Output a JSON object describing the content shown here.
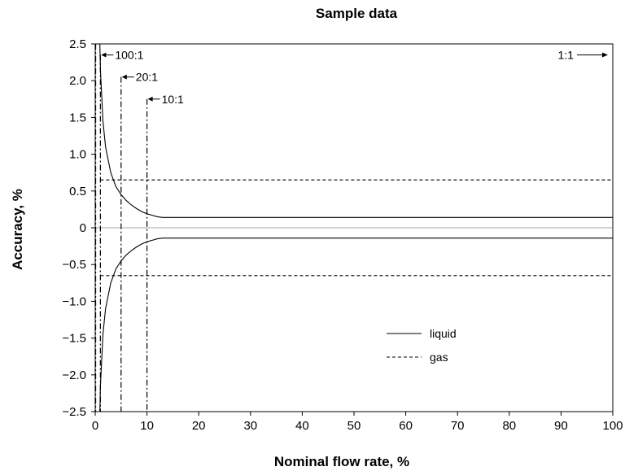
{
  "chart_data": {
    "type": "line",
    "title": "Sample data",
    "xlabel": "Nominal flow rate, %",
    "ylabel": "Accuracy, %",
    "xlim": [
      0,
      100
    ],
    "ylim": [
      -2.5,
      2.5
    ],
    "x_ticks": [
      0,
      10,
      20,
      30,
      40,
      50,
      60,
      70,
      80,
      90,
      100
    ],
    "x_tick_labels": [
      "0",
      "10",
      "20",
      "30",
      "40",
      "50",
      "60",
      "70",
      "80",
      "90",
      "100"
    ],
    "y_ticks": [
      2.5,
      2.0,
      1.5,
      1.0,
      0.5,
      0,
      -0.5,
      -1.0,
      -1.5,
      -2.0,
      -2.5
    ],
    "y_tick_labels": [
      "2.5",
      "2.0",
      "1.5",
      "1.0",
      "0.5",
      "0",
      "−0.5",
      "−1.0",
      "−1.5",
      "−2.0",
      "−2.5"
    ],
    "grid": false,
    "legend_position": "lower-right",
    "series": [
      {
        "name": "liquid",
        "style": "solid",
        "color": "#000000",
        "upper": {
          "x": [
            0.9,
            1,
            1.5,
            2,
            3,
            4,
            5,
            6,
            7,
            8,
            9,
            10,
            11,
            12,
            13,
            14,
            15,
            20,
            30,
            40,
            50,
            60,
            70,
            80,
            90,
            100
          ],
          "y": [
            2.5,
            2.15,
            1.45,
            1.1,
            0.75,
            0.56,
            0.45,
            0.37,
            0.31,
            0.26,
            0.22,
            0.19,
            0.17,
            0.15,
            0.14,
            0.14,
            0.14,
            0.14,
            0.14,
            0.14,
            0.14,
            0.14,
            0.14,
            0.14,
            0.14,
            0.14
          ]
        },
        "lower": {
          "x": [
            0.9,
            1,
            1.5,
            2,
            3,
            4,
            5,
            6,
            7,
            8,
            9,
            10,
            11,
            12,
            13,
            14,
            15,
            20,
            30,
            40,
            50,
            60,
            70,
            80,
            90,
            100
          ],
          "y": [
            -2.5,
            -2.15,
            -1.45,
            -1.1,
            -0.75,
            -0.56,
            -0.45,
            -0.37,
            -0.31,
            -0.26,
            -0.22,
            -0.19,
            -0.17,
            -0.15,
            -0.14,
            -0.14,
            -0.14,
            -0.14,
            -0.14,
            -0.14,
            -0.14,
            -0.14,
            -0.14,
            -0.14,
            -0.14,
            -0.14
          ]
        }
      },
      {
        "name": "gas",
        "style": "dashed",
        "color": "#000000",
        "upper": {
          "x": [
            1,
            100
          ],
          "y": [
            0.65,
            0.65
          ]
        },
        "lower": {
          "x": [
            1,
            100
          ],
          "y": [
            -0.65,
            -0.65
          ]
        }
      }
    ],
    "reference_lines": [
      {
        "x": 1,
        "y_top": 2.35,
        "label": "100:1",
        "style": "dash-dot"
      },
      {
        "x": 5,
        "y_top": 2.05,
        "label": "20:1",
        "style": "dash-dot"
      },
      {
        "x": 10,
        "y_top": 1.75,
        "label": "10:1",
        "style": "dash-dot"
      }
    ],
    "edge_annotation": {
      "label": "1:1",
      "x": 100,
      "y": 2.35
    },
    "left_edge_dashdot_x": 0.1
  }
}
